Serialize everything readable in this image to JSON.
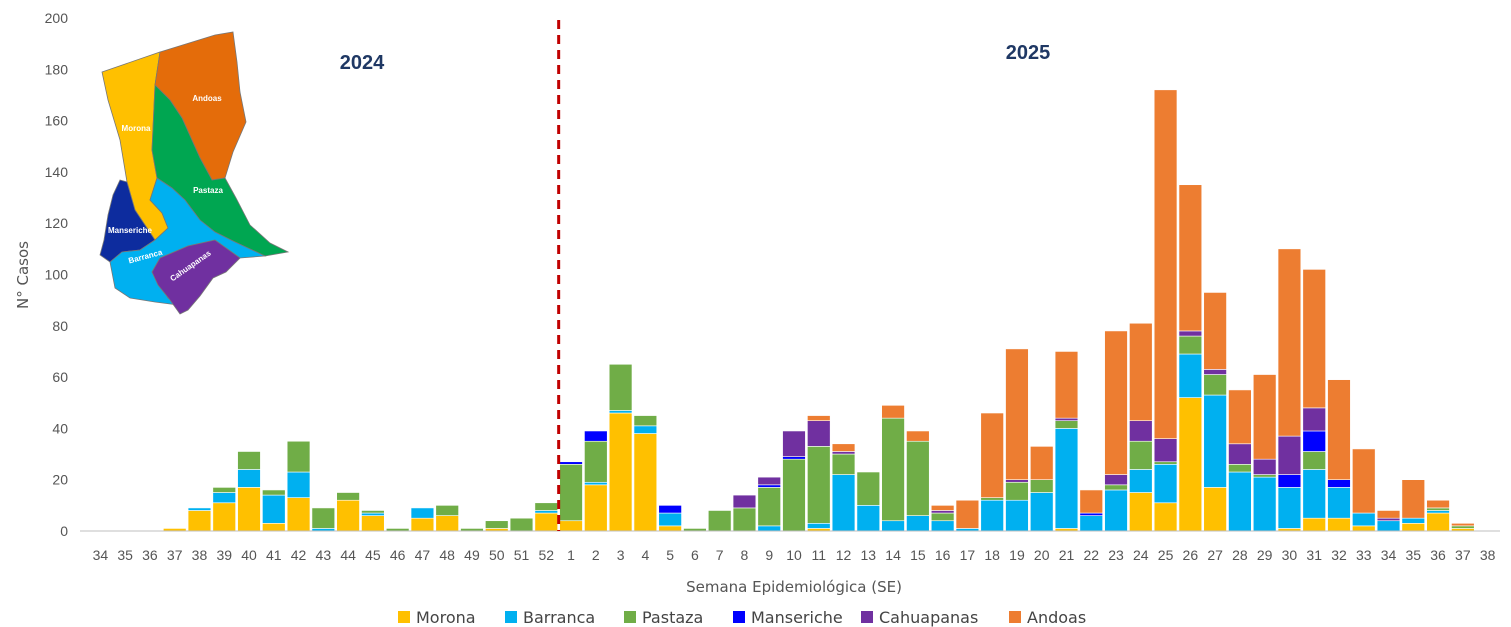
{
  "chart_data": {
    "type": "bar",
    "stacked": true,
    "xlabel": "Semana Epidemiológica (SE)",
    "ylabel": "N° Casos",
    "ylim": [
      0,
      200
    ],
    "yticks": [
      0,
      20,
      40,
      60,
      80,
      100,
      120,
      140,
      160,
      180,
      200
    ],
    "year_labels": [
      "2024",
      "2025"
    ],
    "year_divider_after_category": "52",
    "categories": [
      "34",
      "35",
      "36",
      "37",
      "38",
      "39",
      "40",
      "41",
      "42",
      "43",
      "44",
      "45",
      "46",
      "47",
      "48",
      "49",
      "50",
      "51",
      "52",
      "1",
      "2",
      "3",
      "4",
      "5",
      "6",
      "7",
      "8",
      "9",
      "10",
      "11",
      "12",
      "13",
      "14",
      "15",
      "16",
      "17",
      "18",
      "19",
      "20",
      "21",
      "22",
      "23",
      "24",
      "25",
      "26",
      "27",
      "28",
      "29",
      "30",
      "31",
      "32",
      "33",
      "34",
      "35",
      "36",
      "37",
      "38"
    ],
    "series": [
      {
        "name": "Morona",
        "color": "#FFC000",
        "values": [
          0,
          0,
          0,
          1,
          8,
          11,
          17,
          3,
          13,
          0,
          12,
          6,
          0,
          5,
          6,
          0,
          1,
          0,
          7,
          4,
          18,
          46,
          38,
          2,
          0,
          0,
          0,
          0,
          0,
          1,
          0,
          0,
          0,
          0,
          0,
          0,
          0,
          0,
          0,
          1,
          0,
          0,
          15,
          11,
          52,
          17,
          0,
          0,
          1,
          5,
          5,
          2,
          0,
          3,
          7,
          1,
          0
        ]
      },
      {
        "name": "Barranca",
        "color": "#00B0F0",
        "values": [
          0,
          0,
          0,
          0,
          1,
          4,
          7,
          11,
          10,
          1,
          0,
          1,
          0,
          4,
          0,
          0,
          0,
          0,
          1,
          0,
          1,
          1,
          3,
          5,
          0,
          0,
          0,
          2,
          0,
          2,
          22,
          10,
          4,
          6,
          4,
          1,
          12,
          12,
          15,
          39,
          6,
          16,
          9,
          15,
          17,
          36,
          23,
          21,
          16,
          19,
          12,
          5,
          4,
          2,
          1,
          0,
          0
        ]
      },
      {
        "name": "Pastaza",
        "color": "#70AD47",
        "values": [
          0,
          0,
          0,
          0,
          0,
          2,
          7,
          2,
          12,
          8,
          3,
          1,
          1,
          0,
          4,
          1,
          3,
          5,
          3,
          22,
          16,
          18,
          4,
          0,
          1,
          8,
          9,
          15,
          28,
          30,
          8,
          13,
          40,
          29,
          3,
          0,
          1,
          7,
          5,
          3,
          0,
          2,
          11,
          1,
          7,
          8,
          3,
          1,
          0,
          7,
          0,
          0,
          0,
          0,
          1,
          1,
          0
        ]
      },
      {
        "name": "Manseriche",
        "color": "#0000FF",
        "values": [
          0,
          0,
          0,
          0,
          0,
          0,
          0,
          0,
          0,
          0,
          0,
          0,
          0,
          0,
          0,
          0,
          0,
          0,
          0,
          1,
          4,
          0,
          0,
          3,
          0,
          0,
          0,
          1,
          1,
          0,
          0,
          0,
          0,
          0,
          0,
          0,
          0,
          0,
          0,
          0,
          1,
          0,
          0,
          0,
          0,
          0,
          0,
          0,
          5,
          8,
          3,
          0,
          0,
          0,
          0,
          0,
          0
        ]
      },
      {
        "name": "Cahuapanas",
        "color": "#7030A0",
        "values": [
          0,
          0,
          0,
          0,
          0,
          0,
          0,
          0,
          0,
          0,
          0,
          0,
          0,
          0,
          0,
          0,
          0,
          0,
          0,
          0,
          0,
          0,
          0,
          0,
          0,
          0,
          5,
          3,
          10,
          10,
          1,
          0,
          0,
          0,
          1,
          0,
          0,
          1,
          0,
          1,
          0,
          4,
          8,
          9,
          2,
          2,
          8,
          6,
          15,
          9,
          0,
          0,
          1,
          0,
          0,
          0,
          0
        ]
      },
      {
        "name": "Andoas",
        "color": "#ED7D31",
        "values": [
          0,
          0,
          0,
          0,
          0,
          0,
          0,
          0,
          0,
          0,
          0,
          0,
          0,
          0,
          0,
          0,
          0,
          0,
          0,
          0,
          0,
          0,
          0,
          0,
          0,
          0,
          0,
          0,
          0,
          2,
          3,
          0,
          5,
          4,
          2,
          11,
          33,
          51,
          13,
          26,
          9,
          56,
          38,
          136,
          57,
          30,
          21,
          33,
          73,
          54,
          39,
          25,
          3,
          15,
          3,
          1,
          0
        ]
      }
    ],
    "map_labels": [
      "Andoas",
      "Morona",
      "Pastaza",
      "Manseriche",
      "Barranca",
      "Cahuapanas"
    ]
  }
}
